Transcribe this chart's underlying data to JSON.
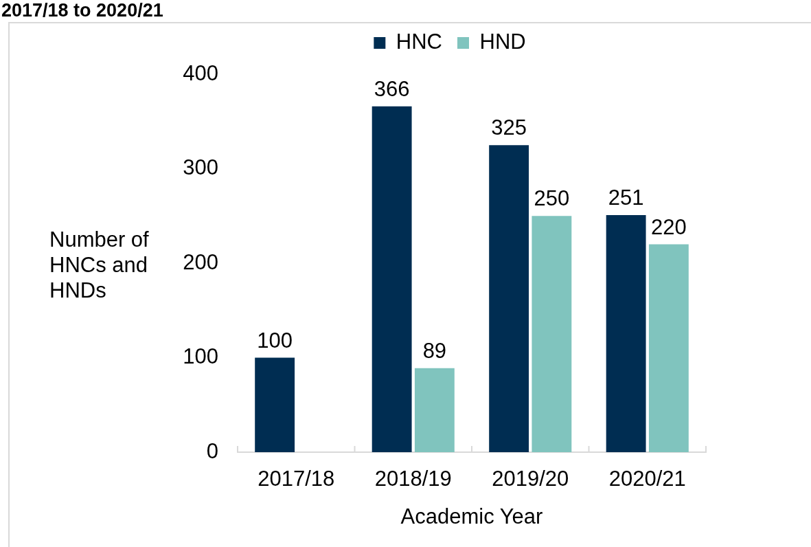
{
  "chart_data": {
    "type": "bar",
    "title": "2017/18 to 2020/21",
    "xlabel": "Academic Year",
    "ylabel": "Number of HNCs and HNDs",
    "categories": [
      "2017/18",
      "2018/19",
      "2019/20",
      "2020/21"
    ],
    "series": [
      {
        "name": "HNC",
        "color": "#002d52",
        "values": [
          100,
          366,
          325,
          251
        ]
      },
      {
        "name": "HND",
        "color": "#80c4be",
        "values": [
          null,
          89,
          250,
          220
        ]
      }
    ],
    "ylim": [
      0,
      400
    ],
    "yticks": [
      0,
      100,
      200,
      300,
      400
    ],
    "legend": "top",
    "data_labels": true
  }
}
